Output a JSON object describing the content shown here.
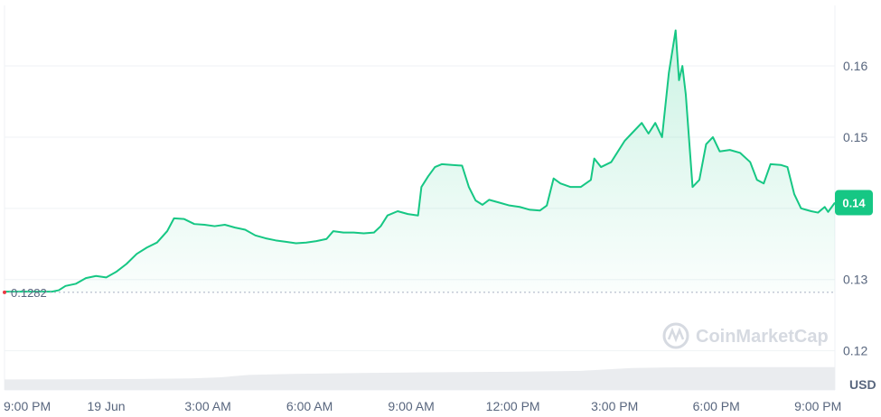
{
  "chart_data": {
    "type": "area",
    "title": "",
    "xlabel": "",
    "ylabel": "",
    "unit": "USD",
    "reference_label": "0.1282",
    "reference_value": 0.1282,
    "current_value_label": "0.14",
    "current_value": 0.1408,
    "watermark": "CoinMarketCap",
    "ylim": [
      0.1145,
      0.1685
    ],
    "y_ticks": [
      {
        "value": 0.16,
        "label": "0.16"
      },
      {
        "value": 0.15,
        "label": "0.15"
      },
      {
        "value": 0.14,
        "label": "0.14"
      },
      {
        "value": 0.13,
        "label": "0.13"
      },
      {
        "value": 0.12,
        "label": "0.12"
      }
    ],
    "x_ticks": [
      {
        "t": 0,
        "label": "9:00 PM"
      },
      {
        "t": 3,
        "label": "19 Jun"
      },
      {
        "t": 6,
        "label": "3:00 AM"
      },
      {
        "t": 9,
        "label": "6:00 AM"
      },
      {
        "t": 12,
        "label": "9:00 AM"
      },
      {
        "t": 15,
        "label": "12:00 PM"
      },
      {
        "t": 18,
        "label": "3:00 PM"
      },
      {
        "t": 21,
        "label": "6:00 PM"
      },
      {
        "t": 24,
        "label": "9:00 PM"
      }
    ],
    "x_range": [
      0,
      24.5
    ],
    "series": [
      {
        "type": "area",
        "color": "#16c784",
        "points": [
          [
            0.0,
            0.1283
          ],
          [
            1.4,
            0.1283
          ],
          [
            1.6,
            0.1285
          ],
          [
            1.8,
            0.1291
          ],
          [
            2.1,
            0.1294
          ],
          [
            2.4,
            0.1302
          ],
          [
            2.7,
            0.1305
          ],
          [
            3.0,
            0.1303
          ],
          [
            3.3,
            0.1311
          ],
          [
            3.6,
            0.1322
          ],
          [
            3.9,
            0.1336
          ],
          [
            4.2,
            0.1345
          ],
          [
            4.5,
            0.1352
          ],
          [
            4.8,
            0.1368
          ],
          [
            5.0,
            0.1386
          ],
          [
            5.3,
            0.1385
          ],
          [
            5.6,
            0.1378
          ],
          [
            5.9,
            0.1377
          ],
          [
            6.2,
            0.1375
          ],
          [
            6.5,
            0.1377
          ],
          [
            6.8,
            0.1373
          ],
          [
            7.1,
            0.137
          ],
          [
            7.4,
            0.1362
          ],
          [
            7.7,
            0.1358
          ],
          [
            8.0,
            0.1355
          ],
          [
            8.3,
            0.1353
          ],
          [
            8.6,
            0.1351
          ],
          [
            8.9,
            0.1352
          ],
          [
            9.2,
            0.1354
          ],
          [
            9.5,
            0.1357
          ],
          [
            9.7,
            0.1368
          ],
          [
            10.0,
            0.1366
          ],
          [
            10.3,
            0.1366
          ],
          [
            10.6,
            0.1365
          ],
          [
            10.9,
            0.1366
          ],
          [
            11.1,
            0.1375
          ],
          [
            11.3,
            0.139
          ],
          [
            11.6,
            0.1396
          ],
          [
            11.9,
            0.1392
          ],
          [
            12.2,
            0.139
          ],
          [
            12.3,
            0.143
          ],
          [
            12.5,
            0.1445
          ],
          [
            12.7,
            0.1458
          ],
          [
            12.9,
            0.1462
          ],
          [
            13.2,
            0.1461
          ],
          [
            13.5,
            0.146
          ],
          [
            13.7,
            0.143
          ],
          [
            13.9,
            0.1411
          ],
          [
            14.1,
            0.1405
          ],
          [
            14.3,
            0.1412
          ],
          [
            14.6,
            0.1408
          ],
          [
            14.9,
            0.1404
          ],
          [
            15.2,
            0.1402
          ],
          [
            15.5,
            0.1398
          ],
          [
            15.8,
            0.1397
          ],
          [
            16.0,
            0.1404
          ],
          [
            16.2,
            0.1442
          ],
          [
            16.4,
            0.1435
          ],
          [
            16.7,
            0.143
          ],
          [
            17.0,
            0.143
          ],
          [
            17.3,
            0.144
          ],
          [
            17.4,
            0.147
          ],
          [
            17.6,
            0.1458
          ],
          [
            17.9,
            0.1465
          ],
          [
            18.1,
            0.148
          ],
          [
            18.3,
            0.1495
          ],
          [
            18.5,
            0.1505
          ],
          [
            18.8,
            0.152
          ],
          [
            19.0,
            0.1505
          ],
          [
            19.2,
            0.152
          ],
          [
            19.4,
            0.15
          ],
          [
            19.6,
            0.159
          ],
          [
            19.8,
            0.165
          ],
          [
            19.9,
            0.158
          ],
          [
            20.0,
            0.16
          ],
          [
            20.1,
            0.156
          ],
          [
            20.3,
            0.143
          ],
          [
            20.5,
            0.144
          ],
          [
            20.7,
            0.149
          ],
          [
            20.9,
            0.15
          ],
          [
            21.1,
            0.148
          ],
          [
            21.4,
            0.1482
          ],
          [
            21.7,
            0.1478
          ],
          [
            22.0,
            0.1465
          ],
          [
            22.2,
            0.144
          ],
          [
            22.4,
            0.1435
          ],
          [
            22.6,
            0.1462
          ],
          [
            22.9,
            0.1461
          ],
          [
            23.1,
            0.1458
          ],
          [
            23.3,
            0.142
          ],
          [
            23.5,
            0.14
          ],
          [
            23.8,
            0.1396
          ],
          [
            24.0,
            0.1394
          ],
          [
            24.2,
            0.1402
          ],
          [
            24.3,
            0.1395
          ],
          [
            24.5,
            0.1408
          ]
        ]
      },
      {
        "type": "volume",
        "color": "#eaecef",
        "points": [
          [
            0.0,
            0.0365
          ],
          [
            2.0,
            0.0368
          ],
          [
            4.0,
            0.038
          ],
          [
            5.5,
            0.0398
          ],
          [
            6.4,
            0.044
          ],
          [
            7.2,
            0.052
          ],
          [
            8.5,
            0.0555
          ],
          [
            10.5,
            0.0585
          ],
          [
            12.5,
            0.061
          ],
          [
            15.0,
            0.063
          ],
          [
            17.0,
            0.066
          ],
          [
            18.5,
            0.076
          ],
          [
            19.5,
            0.078
          ],
          [
            21.0,
            0.079
          ],
          [
            24.5,
            0.079
          ]
        ]
      }
    ],
    "grid": true,
    "legend": "none"
  }
}
